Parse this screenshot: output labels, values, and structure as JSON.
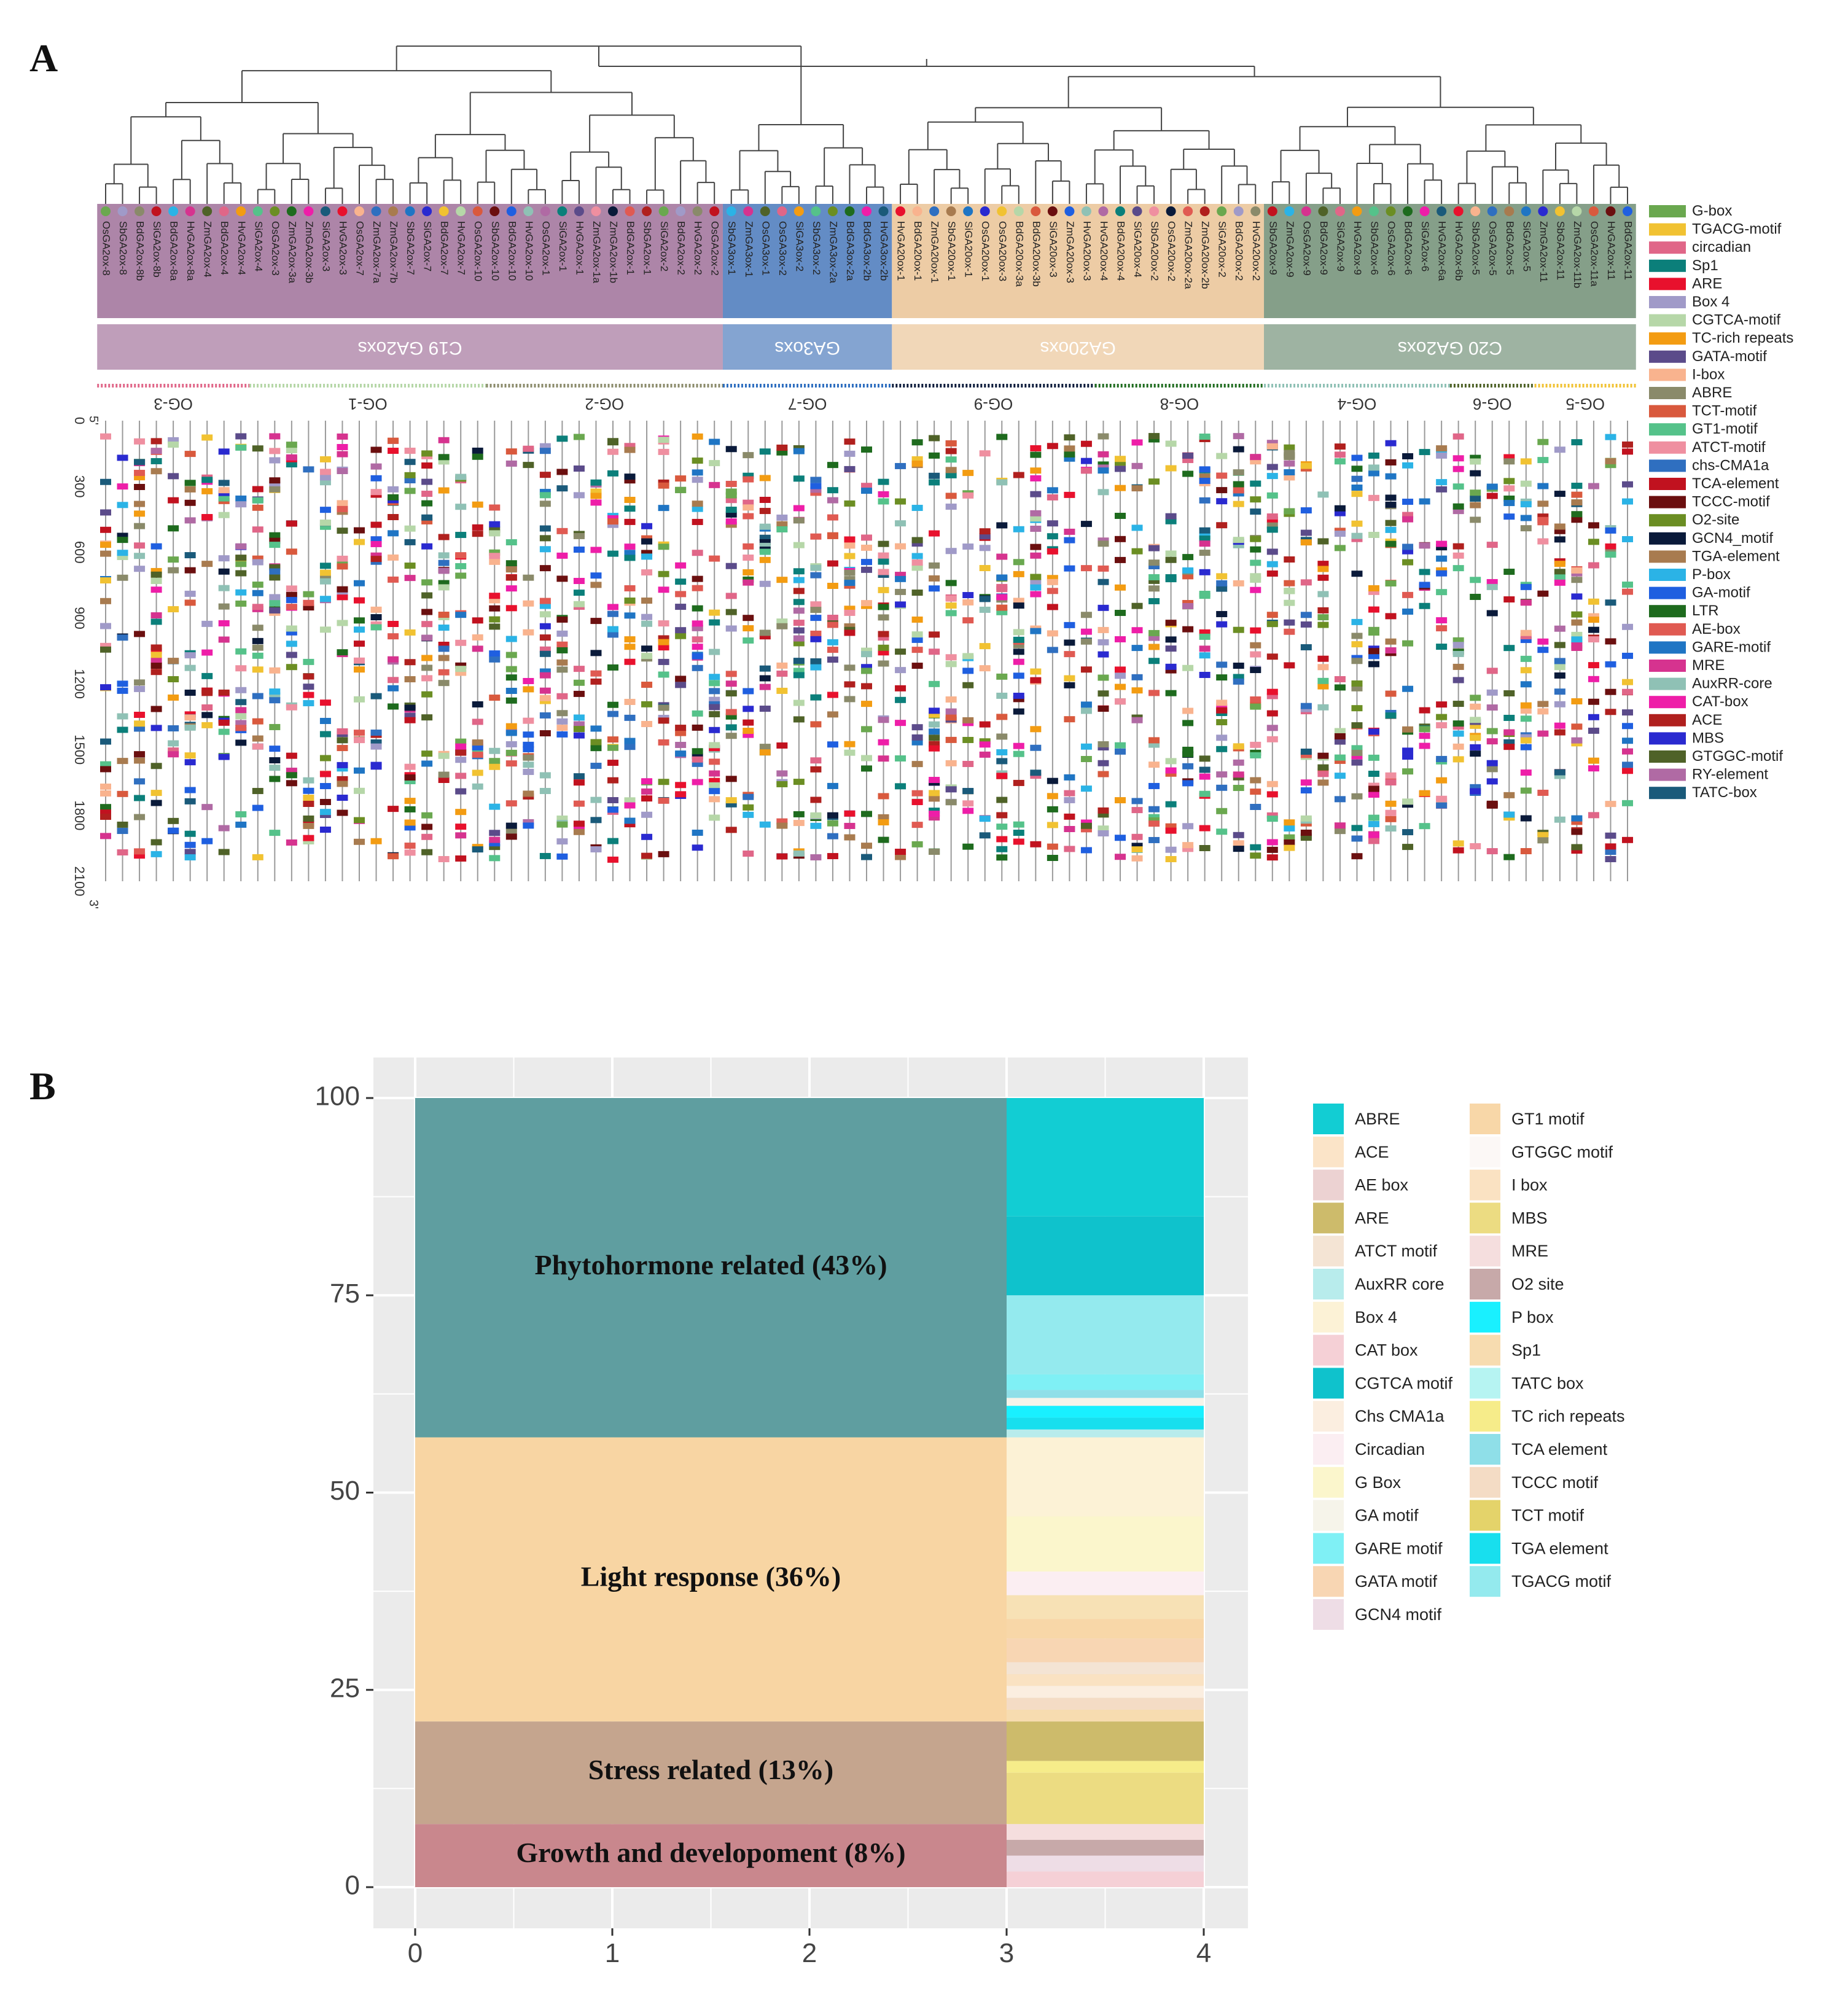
{
  "panel_a": {
    "label": "A",
    "groups": [
      {
        "name": "C19 GA2oxs",
        "color": "#a97ea3"
      },
      {
        "name": "GA3oxs",
        "color": "#5b86c2"
      },
      {
        "name": "GA20oxs",
        "color": "#ecc9a0"
      },
      {
        "name": "C20 GA2oxs",
        "color": "#7e9a83"
      }
    ],
    "ortho_groups": [
      "OG-3",
      "OG-1",
      "OG-2",
      "OG-7",
      "OG-9",
      "OG-8",
      "OG-4",
      "OG-6",
      "OG-5"
    ],
    "genes": [
      "OsGA2ox-8",
      "SbGA2ox-8",
      "BdGA2ox-8b",
      "SiGA2ox-8b",
      "BdGA2ox-8a",
      "HvGA2ox-8a",
      "ZmGA2ox-4",
      "BdGA2ox-4",
      "HvGA2ox-4",
      "SiGA2ox-4",
      "OsGA2ox-3",
      "ZmGA2ox-3a",
      "ZmGA2ox-3b",
      "SiGA2ox-3",
      "HvGA2ox-3",
      "OsGA2ox-7",
      "ZmGA2ox-7a",
      "ZmGA2ox-7b",
      "SbGA2ox-7",
      "SiGA2ox-7",
      "BdGA2ox-7",
      "HvGA2ox-7",
      "OsGA2ox-10",
      "SbGA2ox-10",
      "BdGA2ox-10",
      "HvGA2ox-10",
      "OsGA2ox-1",
      "SiGA2ox-1",
      "HvGA2ox-1",
      "ZmGA2ox-1a",
      "ZmGA2ox-1b",
      "BdGA2ox-1",
      "SbGA2ox-1",
      "SiGA2ox-2",
      "BdGA2ox-2",
      "HvGA2ox-2",
      "OsGA2ox-2",
      "SbGA3ox-1",
      "ZmGA3ox-1",
      "OsGA3ox-1",
      "OsGA3ox-2",
      "SiGA3ox-2",
      "SbGA3ox-2",
      "ZmGA3ox-2a",
      "BdGA3ox-2a",
      "BdGA3ox-2b",
      "HvGA3ox-2b",
      "HvGA20ox-1",
      "BdGA20ox-1",
      "ZmGA20ox-1",
      "SbGA20ox-1",
      "SiGA20ox-1",
      "OsGA20ox-1",
      "OsGA20ox-3",
      "BdGA20ox-3a",
      "BdGA20ox-3b",
      "SiGA20ox-3",
      "ZmGA20ox-3",
      "HvGA20ox-3",
      "HvGA20ox-4",
      "BdGA20ox-4",
      "SiGA20ox-4",
      "SbGA20ox-2",
      "OsGA20ox-2",
      "ZmGA20ox-2a",
      "ZmGA20ox-2b",
      "SiGA20ox-2",
      "BdGA20ox-2",
      "HvGA20ox-2",
      "SbGA2ox-9",
      "ZmGA2ox-9",
      "OsGA2ox-9",
      "BdGA2ox-9",
      "SiGA2ox-9",
      "HvGA2ox-9",
      "SbGA2ox-6",
      "OsGA2ox-6",
      "BdGA2ox-6",
      "SiGA2ox-6",
      "HvGA2ox-6a",
      "HvGA2ox-6b",
      "SbGA2ox-5",
      "OsGA2ox-5",
      "BdGA2ox-5",
      "SiGA2ox-5",
      "ZmGA2ox-11",
      "SbGA2ox-11",
      "ZmGA2ox-11b",
      "OsGA2ox-11a",
      "HvGA2ox-11",
      "BdGA2ox-11"
    ],
    "position_axis": {
      "ticks": [
        "0",
        "300",
        "600",
        "900",
        "1200",
        "1500",
        "1800",
        "2100"
      ],
      "top_label": "5'",
      "bottom_label": "3'"
    },
    "legend": [
      {
        "name": "G-box",
        "color": "#6aa84f"
      },
      {
        "name": "TGACG-motif",
        "color": "#f1c232"
      },
      {
        "name": "circadian",
        "color": "#e06688"
      },
      {
        "name": "Sp1",
        "color": "#0b7f7a"
      },
      {
        "name": "ARE",
        "color": "#e8112d"
      },
      {
        "name": "Box 4",
        "color": "#a09ac8"
      },
      {
        "name": "CGTCA-motif",
        "color": "#b6d7a8"
      },
      {
        "name": "TC-rich repeats",
        "color": "#f39c12"
      },
      {
        "name": "GATA-motif",
        "color": "#5b4b8a"
      },
      {
        "name": "I-box",
        "color": "#f9b38e"
      },
      {
        "name": "ABRE",
        "color": "#8a8a6a"
      },
      {
        "name": "TCT-motif",
        "color": "#d9593d"
      },
      {
        "name": "GT1-motif",
        "color": "#55c28a"
      },
      {
        "name": "ATCT-motif",
        "color": "#ef8fa0"
      },
      {
        "name": "chs-CMA1a",
        "color": "#2f6fc0"
      },
      {
        "name": "TCA-element",
        "color": "#c1121f"
      },
      {
        "name": "TCCC-motif",
        "color": "#6b0f0f"
      },
      {
        "name": "O2-site",
        "color": "#6b8e23"
      },
      {
        "name": "GCN4_motif",
        "color": "#0a1a3a"
      },
      {
        "name": "TGA-element",
        "color": "#a87b4f"
      },
      {
        "name": "P-box",
        "color": "#2bb3e6"
      },
      {
        "name": "GA-motif",
        "color": "#1f5fe0"
      },
      {
        "name": "LTR",
        "color": "#1e6b1e"
      },
      {
        "name": "AE-box",
        "color": "#e05a52"
      },
      {
        "name": "GARE-motif",
        "color": "#1f75c4"
      },
      {
        "name": "MRE",
        "color": "#d6338f"
      },
      {
        "name": "AuxRR-core",
        "color": "#8fc1b5"
      },
      {
        "name": "CAT-box",
        "color": "#ee1ea8"
      },
      {
        "name": "ACE",
        "color": "#b0201e"
      },
      {
        "name": "MBS",
        "color": "#2a2ad0"
      },
      {
        "name": "GTGGC-motif",
        "color": "#4f6228"
      },
      {
        "name": "RY-element",
        "color": "#b06aa4"
      },
      {
        "name": "TATC-box",
        "color": "#1a5a7a"
      }
    ]
  },
  "panel_b": {
    "label": "B",
    "chart_data": {
      "type": "bar",
      "stacked": true,
      "x_ticks": [
        "0",
        "1",
        "2",
        "3",
        "4"
      ],
      "y_ticks": [
        "0",
        "25",
        "50",
        "75",
        "100"
      ],
      "xlim": [
        0,
        4
      ],
      "ylim": [
        0,
        100
      ],
      "categories": [
        {
          "name": "Growth and developoment (8%)",
          "start": 0,
          "end": 8,
          "color": "#c9878d"
        },
        {
          "name": "Stress related (13%)",
          "start": 8,
          "end": 21,
          "color": "#c5a58e"
        },
        {
          "name": "Light response (36%)",
          "start": 21,
          "end": 57,
          "color": "#f8d5a3"
        },
        {
          "name": "Phytohormone related (43%)",
          "start": 57,
          "end": 100,
          "color": "#5f9ea0"
        }
      ],
      "motif_segments": [
        {
          "name": "CAT box",
          "start": 0,
          "end": 2,
          "color": "#f5d0d6"
        },
        {
          "name": "GCN4 motif",
          "start": 2,
          "end": 4,
          "color": "#eedde6"
        },
        {
          "name": "O2 site",
          "start": 4,
          "end": 6,
          "color": "#c7a9a9"
        },
        {
          "name": "MRE",
          "start": 6,
          "end": 8,
          "color": "#f5dede"
        },
        {
          "name": "MBS",
          "start": 8,
          "end": 14.5,
          "color": "#ecdc82"
        },
        {
          "name": "TC rich repeats",
          "start": 14.5,
          "end": 16,
          "color": "#f6ec8a"
        },
        {
          "name": "ARE",
          "start": 16,
          "end": 21,
          "color": "#cdbb6b"
        },
        {
          "name": "Sp1",
          "start": 21,
          "end": 22.5,
          "color": "#f7dcb0"
        },
        {
          "name": "TCCC motif",
          "start": 22.5,
          "end": 24,
          "color": "#f4dcc5"
        },
        {
          "name": "Chs CMA1a",
          "start": 24,
          "end": 25.5,
          "color": "#fbeee0"
        },
        {
          "name": "I box",
          "start": 25.5,
          "end": 27,
          "color": "#fae2c2"
        },
        {
          "name": "ATCT motif",
          "start": 27,
          "end": 28.5,
          "color": "#f4e4d4"
        },
        {
          "name": "GATA motif",
          "start": 28.5,
          "end": 31.5,
          "color": "#f8d6b3"
        },
        {
          "name": "GT1 motif",
          "start": 31.5,
          "end": 34,
          "color": "#f8d7a8"
        },
        {
          "name": "TCT motif",
          "start": 34,
          "end": 37,
          "color": "#f7e1b5"
        },
        {
          "name": "Circadian",
          "start": 37,
          "end": 40,
          "color": "#fbeef2"
        },
        {
          "name": "G Box",
          "start": 40,
          "end": 47,
          "color": "#fbf6cc"
        },
        {
          "name": "Box 4",
          "start": 47,
          "end": 57,
          "color": "#fcf2d6"
        },
        {
          "name": "AuxRR core",
          "start": 57,
          "end": 58,
          "color": "#b8ecec"
        },
        {
          "name": "TGA element",
          "start": 58,
          "end": 59.5,
          "color": "#18dfee"
        },
        {
          "name": "P box",
          "start": 59.5,
          "end": 61,
          "color": "#19f0ff"
        },
        {
          "name": "GA motif",
          "start": 61,
          "end": 62,
          "color": "#f6f4ea"
        },
        {
          "name": "TCA element",
          "start": 62,
          "end": 63,
          "color": "#8fdfe8"
        },
        {
          "name": "GARE motif",
          "start": 63,
          "end": 65,
          "color": "#7ff0f5"
        },
        {
          "name": "TGACG motif",
          "start": 65,
          "end": 75,
          "color": "#94eaee"
        },
        {
          "name": "CGTCA motif",
          "start": 75,
          "end": 85,
          "color": "#0fc2cc"
        },
        {
          "name": "ABRE",
          "start": 85,
          "end": 100,
          "color": "#12cdd3"
        }
      ],
      "legend_left": [
        {
          "name": "ABRE",
          "color": "#12cdd3"
        },
        {
          "name": "ACE",
          "color": "#fbe4c8"
        },
        {
          "name": "AE box",
          "color": "#ecd2d2"
        },
        {
          "name": "ARE",
          "color": "#cdbb6b"
        },
        {
          "name": "ATCT motif",
          "color": "#f4e4d4"
        },
        {
          "name": "AuxRR core",
          "color": "#b8ecec"
        },
        {
          "name": "Box 4",
          "color": "#fcf2d6"
        },
        {
          "name": "CAT box",
          "color": "#f5d0d6"
        },
        {
          "name": "CGTCA motif",
          "color": "#0fc2cc"
        },
        {
          "name": "Chs CMA1a",
          "color": "#fbeee0"
        },
        {
          "name": "Circadian",
          "color": "#fbeef2"
        },
        {
          "name": "G Box",
          "color": "#fbf6cc"
        },
        {
          "name": "GA motif",
          "color": "#f6f4ea"
        },
        {
          "name": "GARE motif",
          "color": "#7ff0f5"
        },
        {
          "name": "GATA motif",
          "color": "#f8d6b3"
        },
        {
          "name": "GCN4 motif",
          "color": "#eedde6"
        }
      ],
      "legend_right": [
        {
          "name": "GT1 motif",
          "color": "#f8d7a8"
        },
        {
          "name": "GTGGC motif",
          "color": "#fcf8f6"
        },
        {
          "name": "I box",
          "color": "#fae2c2"
        },
        {
          "name": "MBS",
          "color": "#ecdc82"
        },
        {
          "name": "MRE",
          "color": "#f5dede"
        },
        {
          "name": "O2 site",
          "color": "#c7a9a9"
        },
        {
          "name": "P box",
          "color": "#19f0ff"
        },
        {
          "name": "Sp1",
          "color": "#f7dcb0"
        },
        {
          "name": "TATC box",
          "color": "#b6f4f2"
        },
        {
          "name": "TC rich repeats",
          "color": "#f6ec8a"
        },
        {
          "name": "TCA element",
          "color": "#8fdfe8"
        },
        {
          "name": "TCCC motif",
          "color": "#f4dcc5"
        },
        {
          "name": "TCT motif",
          "color": "#e4d36a"
        },
        {
          "name": "TGA element",
          "color": "#18dfee"
        },
        {
          "name": "TGACG motif",
          "color": "#94eaee"
        }
      ]
    }
  }
}
